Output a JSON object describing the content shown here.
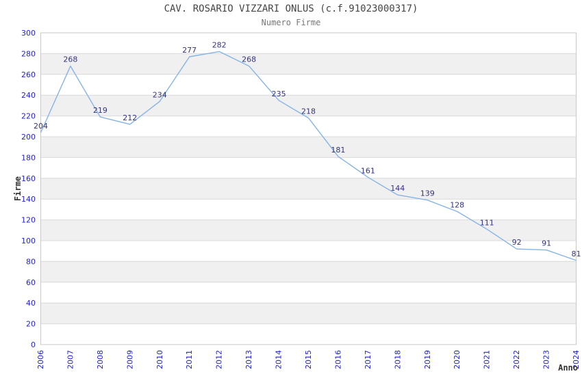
{
  "header": {
    "title": "CAV. ROSARIO VIZZARI ONLUS (c.f.91023000317)",
    "subtitle": "Numero Firme"
  },
  "chart_data": {
    "type": "line",
    "title": "CAV. ROSARIO VIZZARI ONLUS (c.f.91023000317)",
    "subtitle": "Numero Firme",
    "xlabel": "Anno",
    "ylabel": "Firme",
    "categories": [
      "2006",
      "2007",
      "2008",
      "2009",
      "2010",
      "2011",
      "2012",
      "2013",
      "2014",
      "2015",
      "2016",
      "2017",
      "2018",
      "2019",
      "2020",
      "2021",
      "2022",
      "2023",
      "2024"
    ],
    "values": [
      204,
      268,
      219,
      212,
      234,
      277,
      282,
      268,
      235,
      218,
      181,
      161,
      144,
      139,
      128,
      111,
      92,
      91,
      81
    ],
    "series": [
      {
        "name": "Numero Firme",
        "values": [
          204,
          268,
          219,
          212,
          234,
          277,
          282,
          268,
          235,
          218,
          181,
          161,
          144,
          139,
          128,
          111,
          92,
          91,
          81
        ]
      }
    ],
    "ylim": [
      0,
      300
    ],
    "ytick_step": 20,
    "data_labels": true,
    "markers": false,
    "legend": "none",
    "grid": "horizontal-gridlines-with-alternating-bands",
    "colors": {
      "line": "#85b3e8",
      "band": "#f0f0f0",
      "grid_line": "#d9d9d9",
      "plot_border": "#c8c8c8",
      "tick_label": "#2222cc",
      "data_label": "#333380",
      "title": "#444444",
      "subtitle": "#777777",
      "axis_title": "#333333"
    }
  }
}
